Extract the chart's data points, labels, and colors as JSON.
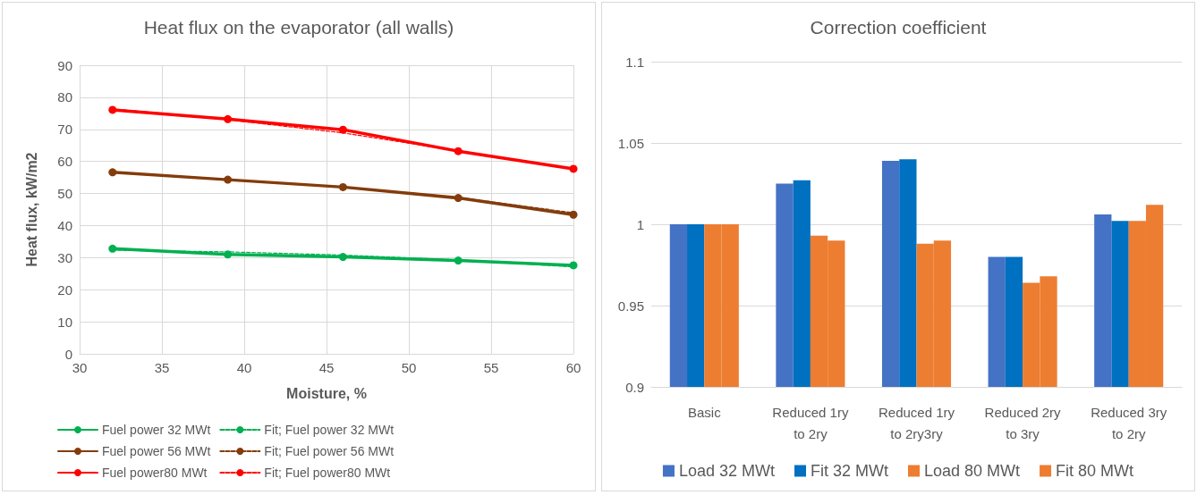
{
  "chart_data": [
    {
      "type": "line",
      "title": "Heat flux on the evaporator (all walls)",
      "xlabel": "Moisture, %",
      "ylabel": "Heat flux, kW/m2",
      "x": [
        32,
        39,
        46,
        53,
        60
      ],
      "series": [
        {
          "name": "Fuel power 32 MWt",
          "color": "#00b050",
          "values": [
            32.8,
            31.0,
            30.2,
            29.1,
            27.6
          ],
          "marker": "circle",
          "line_style": "solid"
        },
        {
          "name": "Fuel power 56 MWt",
          "color": "#843c0c",
          "values": [
            56.6,
            54.3,
            52.0,
            48.6,
            43.4
          ],
          "marker": "circle",
          "line_style": "solid"
        },
        {
          "name": "Fuel power80 MWt",
          "color": "#ff0000",
          "values": [
            76.1,
            73.2,
            69.9,
            63.2,
            57.7
          ],
          "marker": "circle",
          "line_style": "solid"
        },
        {
          "name": "Fit; Fuel power 32 MWt",
          "color": "#00b050",
          "values": [
            32.3,
            31.8,
            30.8,
            29.3,
            27.1
          ],
          "marker": "none",
          "line_style": "dashed"
        },
        {
          "name": "Fit; Fuel power 56 MWt",
          "color": "#843c0c",
          "values": [
            56.6,
            54.3,
            52.0,
            48.8,
            44.0
          ],
          "marker": "none",
          "line_style": "dashed"
        },
        {
          "name": "Fit; Fuel power80 MWt",
          "color": "#ff0000",
          "values": [
            76.4,
            73.0,
            68.9,
            63.3,
            57.6
          ],
          "marker": "none",
          "line_style": "dashed"
        }
      ],
      "xlim": [
        30,
        60
      ],
      "xticks": [
        30,
        35,
        40,
        45,
        50,
        55,
        60
      ],
      "ylim": [
        0,
        90
      ],
      "yticks": [
        0,
        10,
        20,
        30,
        40,
        50,
        60,
        70,
        80,
        90
      ],
      "grid": true,
      "legend": "bottom"
    },
    {
      "type": "bar",
      "title": "Correction coefficient",
      "categories": [
        "Basic",
        "Reduced 1ry to 2ry",
        "Reduced 1ry to 2ry3ry",
        "Reduced 2ry to 3ry",
        "Reduced 3ry to 2ry"
      ],
      "series": [
        {
          "name": "Load 32 MWt",
          "color": "#4472c4",
          "values": [
            1.0,
            1.025,
            1.039,
            0.98,
            1.006
          ]
        },
        {
          "name": "Fit 32 MWt",
          "color": "#0070c0",
          "values": [
            1.0,
            1.027,
            1.04,
            0.98,
            1.002
          ]
        },
        {
          "name": "Load 80 MWt",
          "color": "#ed7d31",
          "values": [
            1.0,
            0.993,
            0.988,
            0.964,
            1.002
          ]
        },
        {
          "name": "Fit 80 MWt",
          "color": "#ed7d31",
          "values": [
            1.0,
            0.99,
            0.99,
            0.968,
            1.012
          ]
        }
      ],
      "ylim": [
        0.9,
        1.1
      ],
      "yticks": [
        0.9,
        0.95,
        1,
        1.05,
        1.1
      ],
      "grid": "y",
      "legend": "bottom"
    }
  ]
}
